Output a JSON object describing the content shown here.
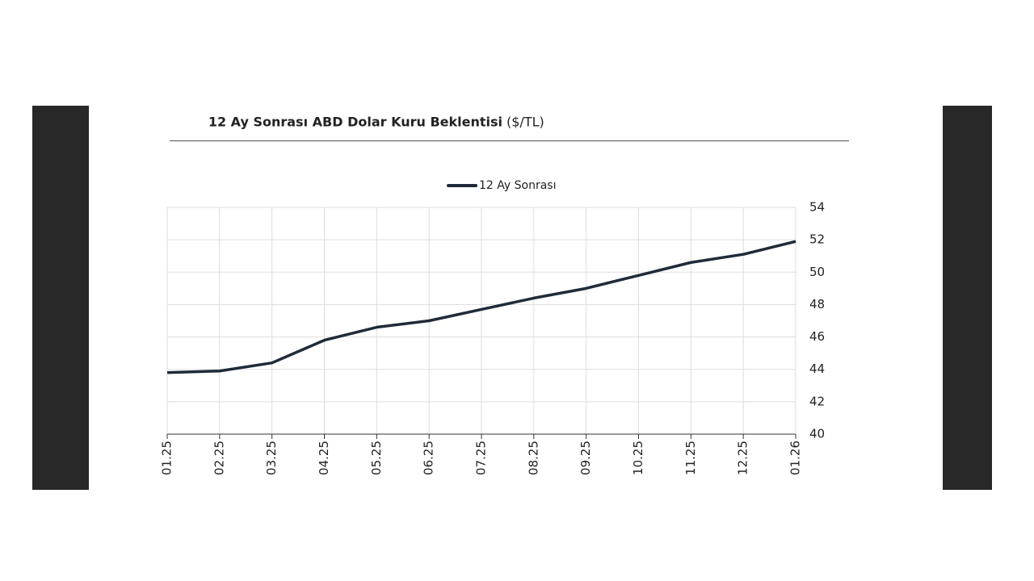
{
  "chart_data": {
    "type": "line",
    "title": "12 Ay Sonrası ABD Dolar Kuru Beklentisi",
    "title_unit": "($/TL)",
    "categories": [
      "01.25",
      "02.25",
      "03.25",
      "04.25",
      "05.25",
      "06.25",
      "07.25",
      "08.25",
      "09.25",
      "10.25",
      "11.25",
      "12.25",
      "01.26"
    ],
    "series": [
      {
        "name": "12 Ay Sonrası",
        "color": "#1f2a3a",
        "values": [
          43.8,
          43.9,
          44.4,
          45.8,
          46.6,
          47.0,
          47.7,
          48.4,
          49.0,
          49.8,
          50.6,
          51.1,
          51.9
        ]
      }
    ],
    "ylim": [
      40,
      54
    ],
    "yticks": [
      40,
      42,
      44,
      46,
      48,
      50,
      52,
      54
    ],
    "grid": true,
    "legend": "top"
  }
}
